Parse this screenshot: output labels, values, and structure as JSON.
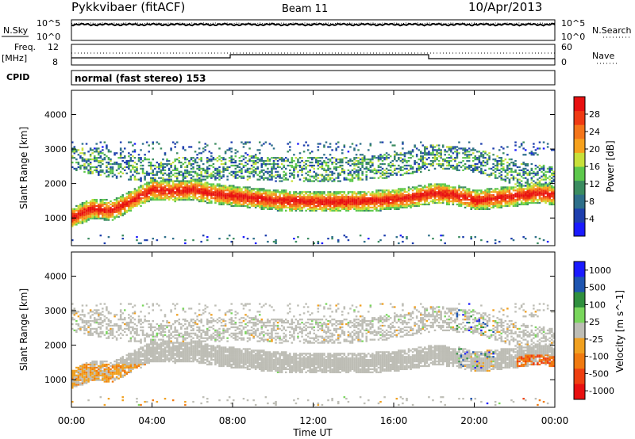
{
  "header": {
    "station": "Pykkvibaer (fitACF)",
    "beam": "Beam 11",
    "date": "10/Apr/2013"
  },
  "noise_panel": {
    "left_label": "N.Sky",
    "left_ticks": [
      "10^5",
      "10^0"
    ],
    "right_ticks": [
      "10^5",
      "10^0"
    ],
    "right_label": "N.Search"
  },
  "freq_panel": {
    "left_label_line1": "Freq.",
    "left_label_line2": "[MHz]",
    "left_ticks": [
      "12",
      "8"
    ],
    "right_ticks": [
      "60",
      "0"
    ],
    "right_label": "Nave"
  },
  "cpid": {
    "label": "CPID",
    "text": "normal (fast stereo) 153"
  },
  "colors": {
    "power_scale": [
      "#1a1aff",
      "#1e3fae",
      "#2e6f8a",
      "#3b8c60",
      "#5dc84c",
      "#c8e03a",
      "#f6a11d",
      "#f4751a",
      "#ef3a13",
      "#e81010"
    ],
    "velocity_scale": [
      "#1a1aff",
      "#1e55b0",
      "#2f8f3e",
      "#79d65c",
      "#bdbdb5",
      "#f0a020",
      "#f07a10",
      "#ee3f10",
      "#e81010"
    ],
    "velocity_gray": "#bdbdb5"
  },
  "chart_data": [
    {
      "type": "heatmap",
      "title": "",
      "ylabel": "Slant Range [km]",
      "xlabel": "",
      "ylim": [
        200,
        4700
      ],
      "yticks": [
        "4000",
        "3000",
        "2000",
        "1000"
      ],
      "xlim_hours": [
        0,
        24
      ],
      "colorbar": {
        "label": "Power [dB]",
        "ticks": [
          "28",
          "24",
          "20",
          "16",
          "12",
          "8",
          "4"
        ],
        "range": [
          0,
          32
        ]
      },
      "bands": [
        {
          "name": "main",
          "x": [
            0,
            1,
            2,
            3,
            4,
            5,
            6,
            7,
            8,
            9,
            10,
            11,
            12,
            13,
            14,
            15,
            16,
            17,
            18,
            19,
            20,
            21,
            22,
            23,
            24
          ],
          "y": [
            1000,
            1250,
            1200,
            1500,
            1800,
            1750,
            1800,
            1680,
            1620,
            1560,
            1500,
            1470,
            1450,
            1450,
            1470,
            1480,
            1520,
            1600,
            1700,
            1650,
            1500,
            1550,
            1620,
            1700,
            1650
          ],
          "thickness": 600
        },
        {
          "name": "upper",
          "x": [
            0,
            2,
            4,
            6,
            8,
            10,
            12,
            14,
            16,
            18,
            20,
            22,
            24
          ],
          "y": [
            2700,
            2500,
            2350,
            2400,
            2450,
            2400,
            2380,
            2400,
            2500,
            2750,
            2650,
            2300,
            2100
          ],
          "thickness": 700
        }
      ]
    },
    {
      "type": "heatmap",
      "title": "",
      "ylabel": "Slant Range [km]",
      "xlabel": "Time UT",
      "ylim": [
        200,
        4700
      ],
      "yticks": [
        "4000",
        "3000",
        "2000",
        "1000"
      ],
      "xticks": [
        "00:00",
        "04:00",
        "08:00",
        "12:00",
        "16:00",
        "20:00",
        "00:00"
      ],
      "xlim_hours": [
        0,
        24
      ],
      "colorbar": {
        "label": "Velocity [m s^-1]",
        "ticks": [
          "1000",
          "500",
          "100",
          "25",
          "-25",
          "-100",
          "-500",
          "-1000"
        ],
        "range": [
          -1200,
          1200
        ]
      }
    }
  ]
}
